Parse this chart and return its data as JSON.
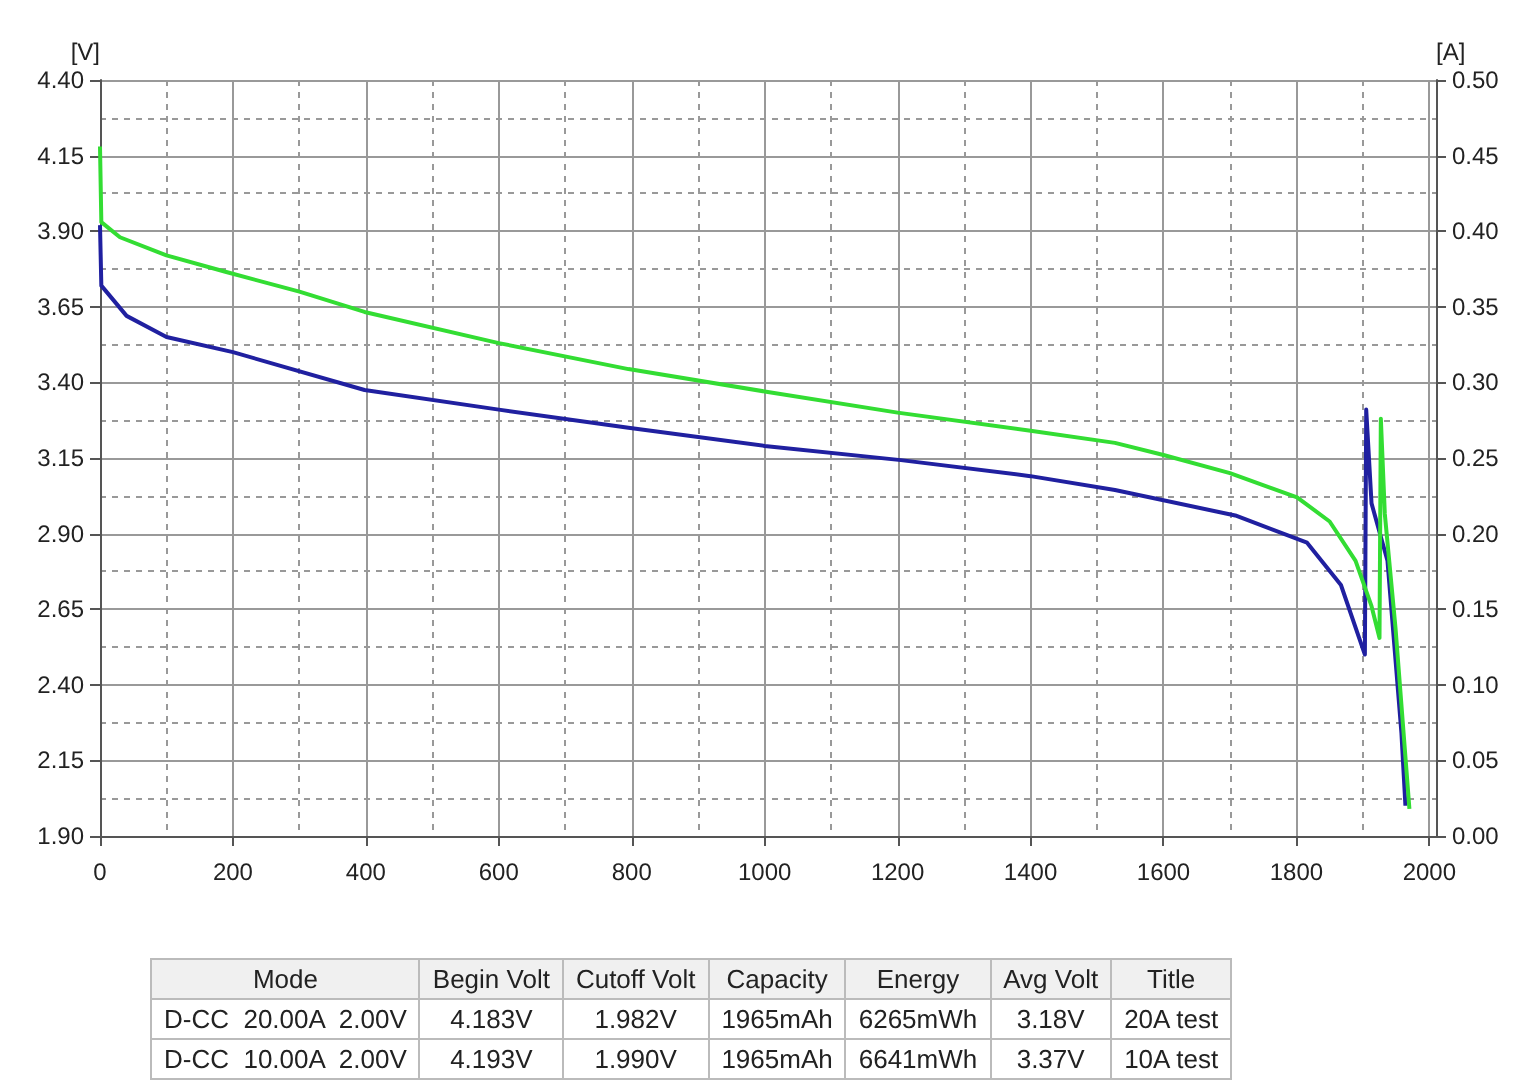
{
  "chart_data": {
    "type": "line",
    "ylabel": "[V]",
    "y2label": "[A]",
    "x": [
      0,
      2,
      40,
      100,
      200,
      398,
      600,
      795,
      1000,
      1205,
      1400,
      1527,
      1708,
      1816,
      1867,
      1903,
      1905,
      1913,
      1937,
      1958,
      1964
    ],
    "series": [
      {
        "color": "#2020a0",
        "values": [
          3.92,
          3.72,
          3.62,
          3.55,
          3.5,
          3.375,
          3.31,
          3.25,
          3.19,
          3.143,
          3.09,
          3.044,
          2.96,
          2.87,
          2.73,
          2.5,
          3.31,
          3.0,
          2.81,
          2.24,
          2.0
        ]
      },
      {
        "color": "#33dd33",
        "x": [
          0,
          2,
          30,
          100,
          190,
          300,
          398,
          600,
          795,
          1000,
          1200,
          1400,
          1527,
          1600,
          1700,
          1801,
          1850,
          1889,
          1913,
          1925,
          1927,
          1933,
          1949,
          1970
        ],
        "values": [
          4.18,
          3.93,
          3.88,
          3.82,
          3.765,
          3.7,
          3.633,
          3.53,
          3.444,
          3.37,
          3.3,
          3.24,
          3.2,
          3.16,
          3.1,
          3.02,
          2.94,
          2.81,
          2.66,
          2.555,
          3.28,
          2.965,
          2.59,
          1.99
        ]
      }
    ],
    "xlim": [
      0,
      2010
    ],
    "xticks": [
      0,
      200,
      400,
      600,
      800,
      1000,
      1200,
      1400,
      1600,
      1800,
      2000
    ],
    "ylim": [
      1.9,
      4.4
    ],
    "yticks": [
      {
        "value": 1.9,
        "label": "1.90"
      },
      {
        "value": 2.15,
        "label": "2.15"
      },
      {
        "value": 2.4,
        "label": "2.40"
      },
      {
        "value": 2.65,
        "label": "2.65"
      },
      {
        "value": 2.9,
        "label": "2.90"
      },
      {
        "value": 3.15,
        "label": "3.15"
      },
      {
        "value": 3.4,
        "label": "3.40"
      },
      {
        "value": 3.65,
        "label": "3.65"
      },
      {
        "value": 3.9,
        "label": "3.90"
      },
      {
        "value": 4.15,
        "label": "4.15"
      },
      {
        "value": 4.4,
        "label": "4.40"
      }
    ],
    "y2lim": [
      0,
      0.5
    ],
    "y2ticks": [
      {
        "value": 0,
        "label": "0.00"
      },
      {
        "value": 0.05,
        "label": "0.05"
      },
      {
        "value": 0.1,
        "label": "0.10"
      },
      {
        "value": 0.15,
        "label": "0.15"
      },
      {
        "value": 0.2,
        "label": "0.20"
      },
      {
        "value": 0.25,
        "label": "0.25"
      },
      {
        "value": 0.3,
        "label": "0.30"
      },
      {
        "value": 0.35,
        "label": "0.35"
      },
      {
        "value": 0.4,
        "label": "0.40"
      },
      {
        "value": 0.45,
        "label": "0.45"
      },
      {
        "value": 0.5,
        "label": "0.50"
      }
    ],
    "grid": true,
    "marker": "none",
    "line_style": "solid",
    "annotations": [
      "Mode",
      "Begin Volt",
      "Cutoff Volt",
      "Capacity",
      "Energy",
      "Avg Volt",
      "Title",
      "D-CC  20.00A  2.00V",
      "4.183V",
      "1.982V",
      "1965mAh",
      "6265mWh",
      "3.18V",
      "20A test",
      "D-CC  10.00A  2.00V",
      "4.193V",
      "1.990V",
      "1965mAh",
      "6641mWh",
      "3.37V",
      "10A test"
    ]
  }
}
